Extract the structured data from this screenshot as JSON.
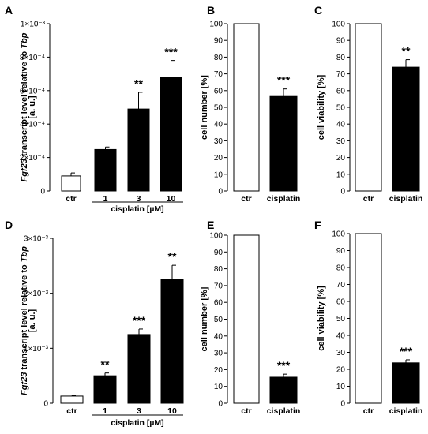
{
  "chart_data": [
    {
      "panel": "A",
      "type": "bar",
      "categories": [
        "ctr",
        "1",
        "3",
        "10"
      ],
      "values": [
        9e-05,
        0.000248,
        0.00049,
        0.00068
      ],
      "errors": [
        1.8e-05,
        1.5e-05,
        0.0001,
        0.0001
      ],
      "colors": [
        "#ffffff",
        "#000000",
        "#000000",
        "#000000"
      ],
      "significance": [
        "",
        "",
        "**",
        "***"
      ],
      "ylim": [
        0,
        0.001
      ],
      "yticks": [
        {
          "v": 0,
          "label": "0"
        },
        {
          "v": 0.0002,
          "label": "2×10⁻⁴"
        },
        {
          "v": 0.0004,
          "label": "4×10⁻⁴"
        },
        {
          "v": 0.0006,
          "label": "6×10⁻⁴"
        },
        {
          "v": 0.0008,
          "label": "8×10⁻⁴"
        },
        {
          "v": 0.001,
          "label": "1×10⁻³"
        }
      ],
      "ylabel_line1": "Fgf23 transcript level relative to Tbp",
      "ylabel_line2": "[a. u.]",
      "group_label": "cisplatin [µM]"
    },
    {
      "panel": "B",
      "type": "bar",
      "categories": [
        "ctr",
        "cisplatin"
      ],
      "values": [
        100,
        56.5
      ],
      "errors": [
        0,
        4.5
      ],
      "colors": [
        "#ffffff",
        "#000000"
      ],
      "significance": [
        "",
        "***"
      ],
      "ylim": [
        0,
        100
      ],
      "yticks": [
        {
          "v": 0,
          "label": "0"
        },
        {
          "v": 10,
          "label": "10"
        },
        {
          "v": 20,
          "label": "20"
        },
        {
          "v": 30,
          "label": "30"
        },
        {
          "v": 40,
          "label": "40"
        },
        {
          "v": 50,
          "label": "50"
        },
        {
          "v": 60,
          "label": "60"
        },
        {
          "v": 70,
          "label": "70"
        },
        {
          "v": 80,
          "label": "80"
        },
        {
          "v": 90,
          "label": "90"
        },
        {
          "v": 100,
          "label": "100"
        }
      ],
      "ylabel": "cell number [%]"
    },
    {
      "panel": "C",
      "type": "bar",
      "categories": [
        "ctr",
        "cisplatin"
      ],
      "values": [
        100,
        74
      ],
      "errors": [
        0,
        4.5
      ],
      "colors": [
        "#ffffff",
        "#000000"
      ],
      "significance": [
        "",
        "**"
      ],
      "ylim": [
        0,
        100
      ],
      "yticks": [
        {
          "v": 0,
          "label": "0"
        },
        {
          "v": 10,
          "label": "10"
        },
        {
          "v": 20,
          "label": "20"
        },
        {
          "v": 30,
          "label": "30"
        },
        {
          "v": 40,
          "label": "40"
        },
        {
          "v": 50,
          "label": "50"
        },
        {
          "v": 60,
          "label": "60"
        },
        {
          "v": 70,
          "label": "70"
        },
        {
          "v": 80,
          "label": "80"
        },
        {
          "v": 90,
          "label": "90"
        },
        {
          "v": 100,
          "label": "100"
        }
      ],
      "ylabel": "cell viability [%]"
    },
    {
      "panel": "D",
      "type": "bar",
      "categories": [
        "ctr",
        "1",
        "3",
        "10"
      ],
      "values": [
        0.00013,
        0.0005,
        0.00125,
        0.00226
      ],
      "errors": [
        1e-05,
        5e-05,
        0.0001,
        0.00025
      ],
      "colors": [
        "#ffffff",
        "#000000",
        "#000000",
        "#000000"
      ],
      "significance": [
        "",
        "**",
        "***",
        "**"
      ],
      "ylim": [
        0,
        0.003
      ],
      "yticks": [
        {
          "v": 0,
          "label": "0"
        },
        {
          "v": 0.001,
          "label": "1×10⁻³"
        },
        {
          "v": 0.002,
          "label": "2×10⁻³"
        },
        {
          "v": 0.003,
          "label": "3×10⁻³"
        }
      ],
      "ylabel_line1": "Fgf23 transcript level relative to Tbp",
      "ylabel_line2": "[a. u.]",
      "group_label": "cisplatin [µM]"
    },
    {
      "panel": "E",
      "type": "bar",
      "categories": [
        "ctr",
        "cisplatin"
      ],
      "values": [
        100,
        15.5
      ],
      "errors": [
        0,
        1.8
      ],
      "colors": [
        "#ffffff",
        "#000000"
      ],
      "significance": [
        "",
        "***"
      ],
      "ylim": [
        0,
        100
      ],
      "yticks": [
        {
          "v": 0,
          "label": "0"
        },
        {
          "v": 10,
          "label": "10"
        },
        {
          "v": 20,
          "label": "20"
        },
        {
          "v": 30,
          "label": "30"
        },
        {
          "v": 40,
          "label": "40"
        },
        {
          "v": 50,
          "label": "50"
        },
        {
          "v": 60,
          "label": "60"
        },
        {
          "v": 70,
          "label": "70"
        },
        {
          "v": 80,
          "label": "80"
        },
        {
          "v": 90,
          "label": "90"
        },
        {
          "v": 100,
          "label": "100"
        }
      ],
      "ylabel": "cell number [%]"
    },
    {
      "panel": "F",
      "type": "bar",
      "categories": [
        "ctr",
        "cisplatin"
      ],
      "values": [
        100,
        23.8
      ],
      "errors": [
        0,
        1.8
      ],
      "colors": [
        "#ffffff",
        "#000000"
      ],
      "significance": [
        "",
        "***"
      ],
      "ylim": [
        0,
        100
      ],
      "yticks": [
        {
          "v": 0,
          "label": "0"
        },
        {
          "v": 10,
          "label": "10"
        },
        {
          "v": 20,
          "label": "20"
        },
        {
          "v": 30,
          "label": "30"
        },
        {
          "v": 40,
          "label": "40"
        },
        {
          "v": 50,
          "label": "50"
        },
        {
          "v": 60,
          "label": "60"
        },
        {
          "v": 70,
          "label": "70"
        },
        {
          "v": 80,
          "label": "80"
        },
        {
          "v": 90,
          "label": "90"
        },
        {
          "v": 100,
          "label": "100"
        }
      ],
      "ylabel": "cell viability [%]"
    }
  ]
}
